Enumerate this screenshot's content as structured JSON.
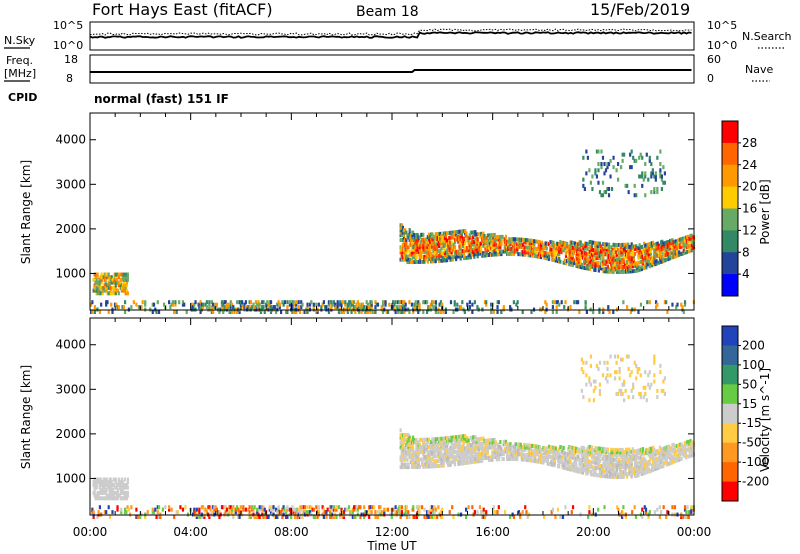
{
  "header": {
    "title": "Fort Hays East (fitACF)",
    "beam": "Beam 18",
    "date": "15/Feb/2019"
  },
  "noise_panel": {
    "left_label": "N.Sky",
    "right_label": "N.Search",
    "left_ticks": [
      "10^5",
      "10^0"
    ],
    "right_ticks": [
      "10^5",
      "10^0"
    ]
  },
  "freq_panel": {
    "left_label_1": "Freq.",
    "left_label_2": "[MHz]",
    "right_label": "Nave",
    "left_ticks": [
      "18",
      "8"
    ],
    "right_ticks": [
      "60",
      "0"
    ],
    "cpid_label": "CPID",
    "program_text": "normal (fast) 151 IF"
  },
  "chart_data": [
    {
      "type": "heatmap",
      "quantity": "Power",
      "ylabel": "Slant Range [km]",
      "colorbar_label": "Power [dB]",
      "colorbar_ticks": [
        "28",
        "24",
        "20",
        "16",
        "12",
        "8",
        "4"
      ],
      "colorbar_colors": [
        "#ff0000",
        "#ff6600",
        "#ff9900",
        "#ffcc00",
        "#66aa66",
        "#338866",
        "#224499",
        "#0000ff"
      ],
      "ylim": [
        180,
        4600
      ],
      "yticks": [
        "4000",
        "3000",
        "2000",
        "1000"
      ],
      "regions": [
        {
          "t_start": 0.1,
          "t_end": 1.5,
          "r_low": 600,
          "r_high": 1050
        },
        {
          "t_start": 12.3,
          "t_end": 24.0,
          "r_low": 1100,
          "r_high": 2300
        },
        {
          "t_start": 0.0,
          "t_end": 24.0,
          "r_low": 180,
          "r_high": 450
        }
      ]
    },
    {
      "type": "heatmap",
      "quantity": "Velocity",
      "ylabel": "Slant Range [km]",
      "colorbar_label": "Velocity [m s^-1]",
      "colorbar_ticks": [
        "200",
        "100",
        "50",
        "15",
        "-15",
        "-50",
        "-100",
        "-200"
      ],
      "colorbar_colors": [
        "#2244bb",
        "#336699",
        "#339966",
        "#66cc44",
        "#cccccc",
        "#ffcc44",
        "#ff9922",
        "#ff6600",
        "#ff0000"
      ],
      "ylim": [
        180,
        4600
      ],
      "yticks": [
        "4000",
        "3000",
        "2000",
        "1000"
      ],
      "xlim": [
        0,
        24
      ],
      "xticks": [
        "00:00",
        "04:00",
        "08:00",
        "12:00",
        "16:00",
        "20:00",
        "00:00"
      ],
      "xlabel": "Time UT"
    }
  ]
}
